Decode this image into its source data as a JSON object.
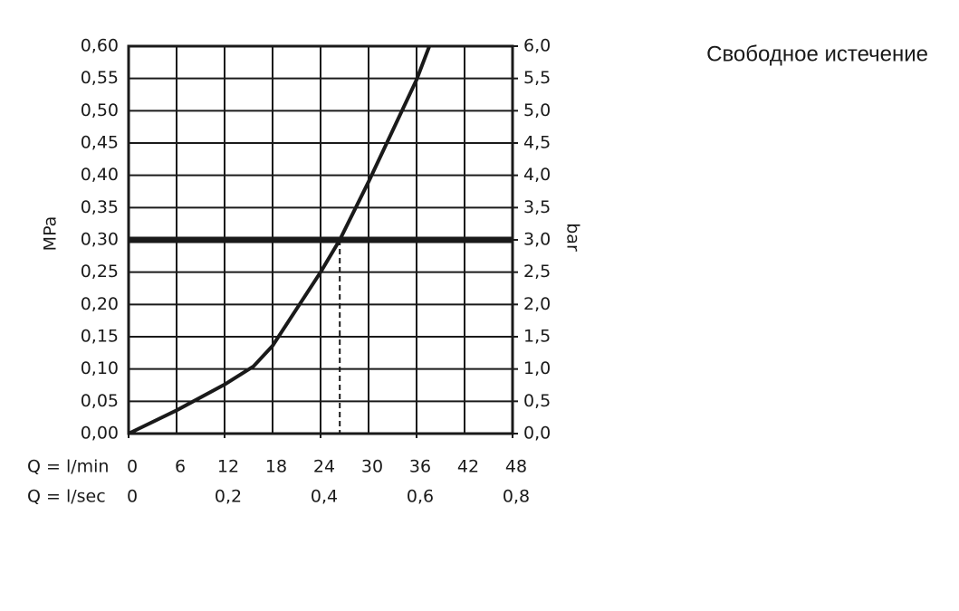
{
  "chart_data": {
    "type": "line",
    "title": "Свободное истечение",
    "ylabel": "MPa",
    "y2label": "bar",
    "xlabel": "Q = l/min",
    "x2label": "Q = l/sec",
    "x": [
      0,
      6,
      12,
      15.6,
      18,
      24,
      26.4,
      30,
      36,
      37.6
    ],
    "series": [
      {
        "color": "#1a1a1a",
        "values": [
          0,
          0.036,
          0.076,
          0.104,
          0.136,
          0.25,
          0.3,
          0.39,
          0.548,
          0.6
        ]
      }
    ],
    "xlim": [
      0,
      48
    ],
    "xticks": [
      0,
      6,
      12,
      18,
      24,
      30,
      36,
      42,
      48
    ],
    "x2lim": [
      0,
      0.8
    ],
    "x2ticks": [
      0,
      {
        "value": 0.2,
        "label": "0,2"
      },
      {
        "value": 0.4,
        "label": "0,4"
      },
      {
        "value": 0.6,
        "label": "0,6"
      },
      {
        "value": 0.8,
        "label": "0,8"
      }
    ],
    "ylim": [
      0,
      0.6
    ],
    "yticks": [
      {
        "value": 0,
        "label": "0,00"
      },
      {
        "value": 0.05,
        "label": "0,05"
      },
      {
        "value": 0.1,
        "label": "0,10"
      },
      {
        "value": 0.15,
        "label": "0,15"
      },
      {
        "value": 0.2,
        "label": "0,20"
      },
      {
        "value": 0.25,
        "label": "0,25"
      },
      {
        "value": 0.3,
        "label": "0,30"
      },
      {
        "value": 0.35,
        "label": "0,35"
      },
      {
        "value": 0.4,
        "label": "0,40"
      },
      {
        "value": 0.45,
        "label": "0,45"
      },
      {
        "value": 0.5,
        "label": "0,50"
      },
      {
        "value": 0.55,
        "label": "0,55"
      },
      {
        "value": 0.6,
        "label": "0,60"
      }
    ],
    "y2lim": [
      0,
      6
    ],
    "y2ticks": [
      {
        "value": 0,
        "label": "0,0"
      },
      {
        "value": 0.5,
        "label": "0,5"
      },
      {
        "value": 1,
        "label": "1,0"
      },
      {
        "value": 1.5,
        "label": "1,5"
      },
      {
        "value": 2,
        "label": "2,0"
      },
      {
        "value": 2.5,
        "label": "2,5"
      },
      {
        "value": 3,
        "label": "3,0"
      },
      {
        "value": 3.5,
        "label": "3,5"
      },
      {
        "value": 4,
        "label": "4,0"
      },
      {
        "value": 4.5,
        "label": "4,5"
      },
      {
        "value": 5,
        "label": "5,0"
      },
      {
        "value": 5.5,
        "label": "5,5"
      },
      {
        "value": 6,
        "label": "6,0"
      }
    ],
    "grid": true,
    "reference": {
      "y": 0.3,
      "x": 26.4
    }
  }
}
